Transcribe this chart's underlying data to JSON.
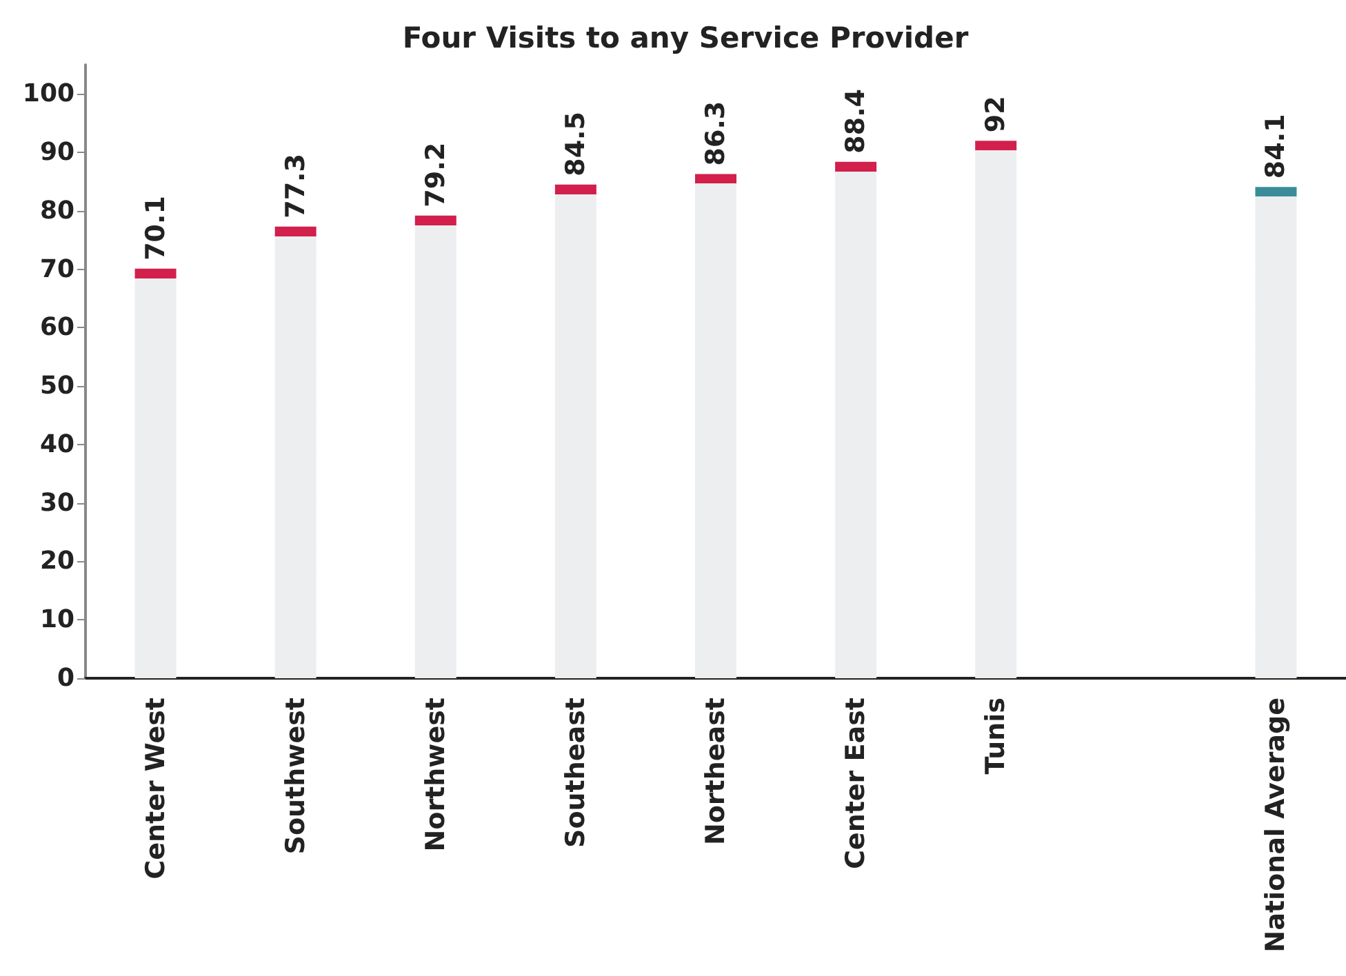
{
  "chart_data": {
    "type": "bar",
    "title": "Four Visits to any Service Provider",
    "categories": [
      "Center West",
      "Southwest",
      "Northwest",
      "Southeast",
      "Northeast",
      "Center East",
      "Tunis",
      null,
      "National Average"
    ],
    "values": [
      70.1,
      77.3,
      79.2,
      84.5,
      86.3,
      88.4,
      92,
      null,
      84.1
    ],
    "colors": [
      "#d21f4b",
      "#d21f4b",
      "#d21f4b",
      "#d21f4b",
      "#d21f4b",
      "#d21f4b",
      "#d21f4b",
      null,
      "#3a8c99"
    ],
    "ylim": [
      0,
      105
    ],
    "yticks": [
      0,
      10,
      20,
      30,
      40,
      50,
      60,
      70,
      80,
      90,
      100
    ],
    "data_labels": true,
    "grid": false
  }
}
